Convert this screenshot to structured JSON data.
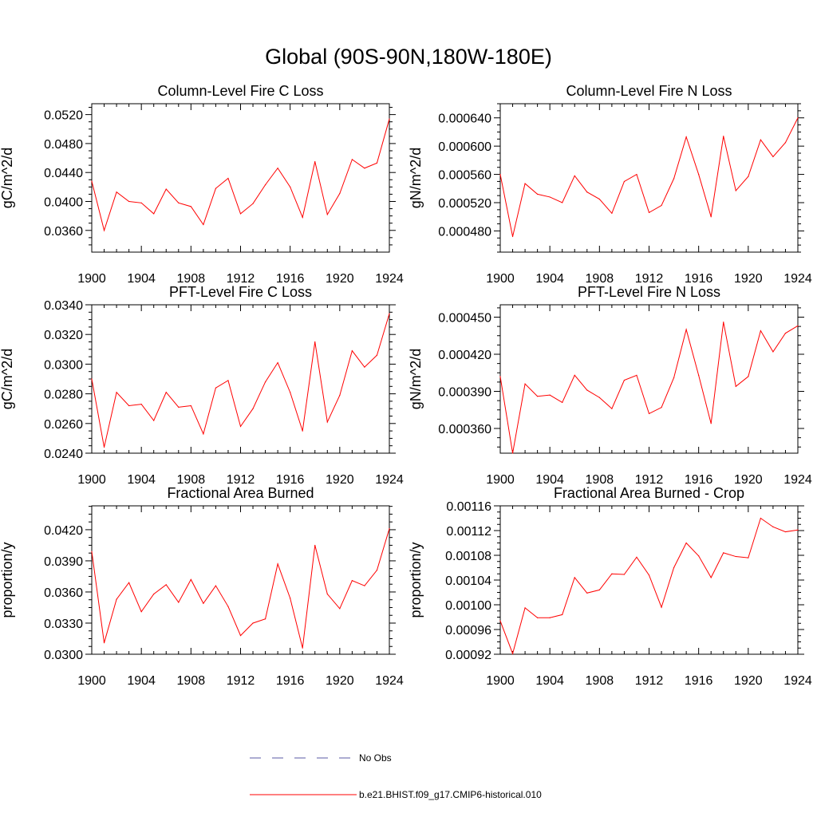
{
  "page_title": "Global (90S-90N,180W-180E)",
  "legend": {
    "obs_label": "No Obs",
    "model_label": "b.e21.BHIST.f09_g17.CMIP6-historical.010",
    "obs_color": "#5a5aa6",
    "model_color": "#ff0000"
  },
  "chart_data": [
    {
      "type": "line",
      "title": "Column-Level Fire C Loss",
      "ylabel": "gC/m^2/d",
      "xlim": [
        1900,
        1924
      ],
      "ylim": [
        0.033,
        0.0535
      ],
      "xticks": [
        "1900",
        "1904",
        "1908",
        "1912",
        "1916",
        "1920",
        "1924"
      ],
      "yticks": [
        "0.0360",
        "0.0400",
        "0.0440",
        "0.0480",
        "0.0520"
      ],
      "grid": false,
      "x": [
        1900,
        1901,
        1902,
        1903,
        1904,
        1905,
        1906,
        1907,
        1908,
        1909,
        1910,
        1911,
        1912,
        1913,
        1914,
        1915,
        1916,
        1917,
        1918,
        1919,
        1920,
        1921,
        1922,
        1923,
        1924
      ],
      "series": [
        {
          "values": [
            0.0428,
            0.036,
            0.0413,
            0.04,
            0.0398,
            0.0383,
            0.0417,
            0.0398,
            0.0393,
            0.0368,
            0.0418,
            0.0432,
            0.0383,
            0.0397,
            0.0423,
            0.0446,
            0.042,
            0.0378,
            0.0455,
            0.0382,
            0.0411,
            0.0458,
            0.0446,
            0.0453,
            0.0514
          ]
        }
      ]
    },
    {
      "type": "line",
      "title": "Column-Level Fire N Loss",
      "ylabel": "gN/m^2/d",
      "xlim": [
        1900,
        1924
      ],
      "ylim": [
        0.00045,
        0.00066
      ],
      "xticks": [
        "1900",
        "1904",
        "1908",
        "1912",
        "1916",
        "1920",
        "1924"
      ],
      "yticks": [
        "0.000480",
        "0.000520",
        "0.000560",
        "0.000600",
        "0.000640"
      ],
      "grid": false,
      "x": [
        1900,
        1901,
        1902,
        1903,
        1904,
        1905,
        1906,
        1907,
        1908,
        1909,
        1910,
        1911,
        1912,
        1913,
        1914,
        1915,
        1916,
        1917,
        1918,
        1919,
        1920,
        1921,
        1922,
        1923,
        1924
      ],
      "series": [
        {
          "values": [
            0.00056,
            0.000472,
            0.000547,
            0.000532,
            0.000528,
            0.00052,
            0.000558,
            0.000535,
            0.000525,
            0.000505,
            0.00055,
            0.00056,
            0.000506,
            0.000516,
            0.000554,
            0.000613,
            0.00056,
            0.0005,
            0.000614,
            0.000537,
            0.000557,
            0.000609,
            0.000585,
            0.000605,
            0.00064
          ]
        }
      ]
    },
    {
      "type": "line",
      "title": "PFT-Level Fire C Loss",
      "ylabel": "gC/m^2/d",
      "xlim": [
        1900,
        1924
      ],
      "ylim": [
        0.024,
        0.034
      ],
      "xticks": [
        "1900",
        "1904",
        "1908",
        "1912",
        "1916",
        "1920",
        "1924"
      ],
      "yticks": [
        "0.0240",
        "0.0260",
        "0.0280",
        "0.0300",
        "0.0320",
        "0.0340"
      ],
      "grid": false,
      "x": [
        1900,
        1901,
        1902,
        1903,
        1904,
        1905,
        1906,
        1907,
        1908,
        1909,
        1910,
        1911,
        1912,
        1913,
        1914,
        1915,
        1916,
        1917,
        1918,
        1919,
        1920,
        1921,
        1922,
        1923,
        1924
      ],
      "series": [
        {
          "values": [
            0.029,
            0.0244,
            0.0281,
            0.0272,
            0.0273,
            0.0262,
            0.0281,
            0.0271,
            0.0272,
            0.0253,
            0.0284,
            0.0289,
            0.0258,
            0.027,
            0.0288,
            0.0301,
            0.0281,
            0.0255,
            0.0315,
            0.0261,
            0.0279,
            0.0309,
            0.0298,
            0.0306,
            0.0334
          ]
        }
      ]
    },
    {
      "type": "line",
      "title": "PFT-Level Fire N Loss",
      "ylabel": "gN/m^2/d",
      "xlim": [
        1900,
        1924
      ],
      "ylim": [
        0.00034,
        0.00046
      ],
      "xticks": [
        "1900",
        "1904",
        "1908",
        "1912",
        "1916",
        "1920",
        "1924"
      ],
      "yticks": [
        "0.000360",
        "0.000390",
        "0.000420",
        "0.000450"
      ],
      "grid": false,
      "x": [
        1900,
        1901,
        1902,
        1903,
        1904,
        1905,
        1906,
        1907,
        1908,
        1909,
        1910,
        1911,
        1912,
        1913,
        1914,
        1915,
        1916,
        1917,
        1918,
        1919,
        1920,
        1921,
        1922,
        1923,
        1924
      ],
      "series": [
        {
          "values": [
            0.000402,
            0.00034,
            0.000396,
            0.000386,
            0.000387,
            0.000381,
            0.000403,
            0.000391,
            0.000385,
            0.000376,
            0.000399,
            0.000403,
            0.000372,
            0.000377,
            0.000401,
            0.00044,
            0.000403,
            0.000364,
            0.000446,
            0.000394,
            0.000402,
            0.000439,
            0.000422,
            0.000437,
            0.000443
          ]
        }
      ]
    },
    {
      "type": "line",
      "title": "Fractional Area Burned",
      "ylabel": "proportion/y",
      "xlim": [
        1900,
        1924
      ],
      "ylim": [
        0.03,
        0.0443
      ],
      "xticks": [
        "1900",
        "1904",
        "1908",
        "1912",
        "1916",
        "1920",
        "1924"
      ],
      "yticks": [
        "0.0300",
        "0.0330",
        "0.0360",
        "0.0390",
        "0.0420"
      ],
      "grid": false,
      "x": [
        1900,
        1901,
        1902,
        1903,
        1904,
        1905,
        1906,
        1907,
        1908,
        1909,
        1910,
        1911,
        1912,
        1913,
        1914,
        1915,
        1916,
        1917,
        1918,
        1919,
        1920,
        1921,
        1922,
        1923,
        1924
      ],
      "series": [
        {
          "values": [
            0.0399,
            0.0311,
            0.0353,
            0.0369,
            0.0341,
            0.0358,
            0.0367,
            0.035,
            0.0372,
            0.0349,
            0.0366,
            0.0346,
            0.0318,
            0.033,
            0.0334,
            0.0387,
            0.0354,
            0.0306,
            0.0405,
            0.0358,
            0.0344,
            0.0371,
            0.0366,
            0.0381,
            0.0421
          ]
        }
      ]
    },
    {
      "type": "line",
      "title": "Fractional Area Burned - Crop",
      "ylabel": "proportion/y",
      "xlim": [
        1900,
        1924
      ],
      "ylim": [
        0.00092,
        0.00116
      ],
      "xticks": [
        "1900",
        "1904",
        "1908",
        "1912",
        "1916",
        "1920",
        "1924"
      ],
      "yticks": [
        "0.00092",
        "0.00096",
        "0.00100",
        "0.00104",
        "0.00108",
        "0.00112",
        "0.00116"
      ],
      "grid": false,
      "x": [
        1900,
        1901,
        1902,
        1903,
        1904,
        1905,
        1906,
        1907,
        1908,
        1909,
        1910,
        1911,
        1912,
        1913,
        1914,
        1915,
        1916,
        1917,
        1918,
        1919,
        1920,
        1921,
        1922,
        1923,
        1924
      ],
      "series": [
        {
          "values": [
            0.000974,
            0.000921,
            0.000995,
            0.000979,
            0.000979,
            0.000984,
            0.001044,
            0.001019,
            0.001024,
            0.00105,
            0.001049,
            0.001077,
            0.001048,
            0.000996,
            0.00106,
            0.0011,
            0.001079,
            0.001044,
            0.001084,
            0.001078,
            0.001076,
            0.00114,
            0.001126,
            0.001118,
            0.001121
          ]
        }
      ]
    }
  ]
}
